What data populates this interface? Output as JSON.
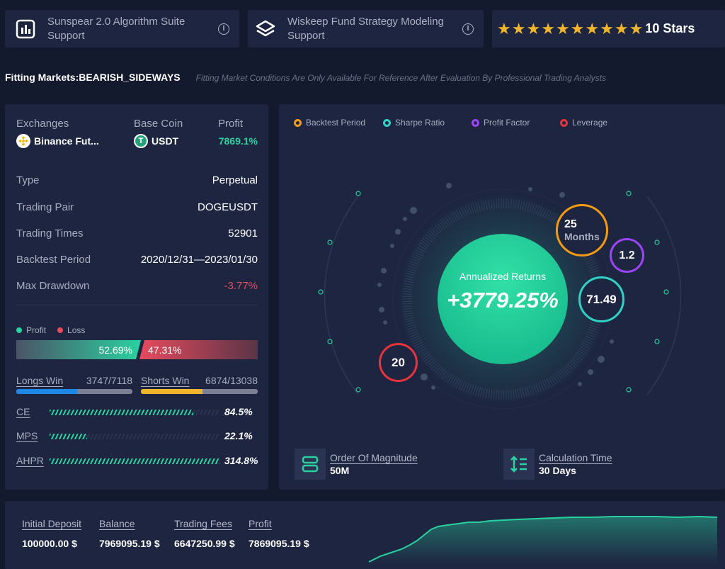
{
  "top_cards": {
    "suite1": {
      "label": "Sunspear 2.0 Algorithm Suite Support",
      "icon": "chart-icon"
    },
    "suite2": {
      "label": "Wiskeep Fund Strategy Modeling Support",
      "icon": "layers-icon"
    },
    "rating": {
      "stars": 10,
      "label": "10 Stars"
    }
  },
  "fitting": {
    "label": "Fitting Markets:BEARISH_SIDEWAYS",
    "note": "Fitting Market Conditions Are Only Available For Reference After Evaluation By Professional Trading Analysts"
  },
  "summary": {
    "exchanges_label": "Exchanges",
    "exchange_value": "Binance Fut...",
    "basecoin_label": "Base Coin",
    "basecoin_value": "USDT",
    "profit_label": "Profit",
    "profit_value": "7869.1%"
  },
  "details": [
    {
      "label": "Type",
      "value": "Perpetual"
    },
    {
      "label": "Trading Pair",
      "value": "DOGEUSDT"
    },
    {
      "label": "Trading Times",
      "value": "52901"
    },
    {
      "label": "Backtest Period",
      "value": "2020/12/31—2023/01/30"
    },
    {
      "label": "Max Drawdown",
      "value": "-3.77%"
    }
  ],
  "profit_loss": {
    "profit_label": "Profit",
    "loss_label": "Loss",
    "profit_pct": "52.69%",
    "loss_pct": "47.31%",
    "profit_fraction": 0.5269
  },
  "wins": {
    "longs_label": "Longs Win",
    "longs_value": "3747/7118",
    "longs_fraction": 0.526,
    "shorts_label": "Shorts Win",
    "shorts_value": "6874/13038",
    "shorts_fraction": 0.527
  },
  "metrics": [
    {
      "label": "CE",
      "value": "84.5%",
      "fraction": 0.845
    },
    {
      "label": "MPS",
      "value": "22.1%",
      "fraction": 0.221
    },
    {
      "label": "AHPR",
      "value": "314.8%",
      "fraction": 1.0
    }
  ],
  "legend": [
    {
      "label": "Backtest Period",
      "color": "#f39c12"
    },
    {
      "label": "Sharpe Ratio",
      "color": "#2fd3c6"
    },
    {
      "label": "Profit Factor",
      "color": "#9b45f5"
    },
    {
      "label": "Leverage",
      "color": "#e8333d"
    }
  ],
  "center": {
    "label": "Annualized Returns",
    "value": "+3779.25%"
  },
  "bubbles": {
    "period_value": "25",
    "period_unit": "Months",
    "profit_factor": "1.2",
    "sharpe": "71.49",
    "leverage": "20"
  },
  "magnitude": {
    "label": "Order Of Magnitude",
    "value": "50M"
  },
  "calc_time": {
    "label": "Calculation Time",
    "value": "30 Days"
  },
  "bottom": {
    "initial_label": "Initial Deposit",
    "initial_value": "100000.00 $",
    "balance_label": "Balance",
    "balance_value": "7969095.19 $",
    "fees_label": "Trading Fees",
    "fees_value": "6647250.99 $",
    "profit_label": "Profit",
    "profit_value": "7869095.19 $"
  },
  "colors": {
    "accent": "#2ad1a0",
    "loss": "#e64a5d",
    "card": "#1d2540",
    "background": "#131a2d"
  }
}
